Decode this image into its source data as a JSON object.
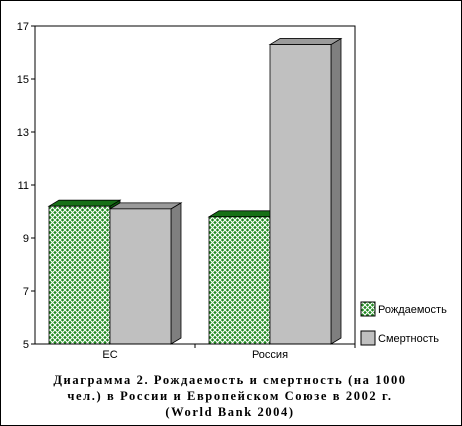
{
  "caption": {
    "line1": "Диаграмма 2. Рождаемость и смертность (на 1000",
    "line2": "чел.) в России и Европейском Союзе в 2002 г.",
    "line3": "(World Bank 2004)"
  },
  "chart_data": {
    "type": "bar",
    "categories": [
      "ЕС",
      "Россия"
    ],
    "series": [
      {
        "name": "Рождаемость",
        "values": [
          10.2,
          9.8
        ],
        "color": "#1a7a1a",
        "pattern": "crosshatch"
      },
      {
        "name": "Смертность",
        "values": [
          10.1,
          16.3
        ],
        "color": "#c0c0c0",
        "pattern": "solid"
      }
    ],
    "yticks": [
      "5",
      "7",
      "9",
      "11",
      "13",
      "15",
      "17"
    ],
    "ylim": [
      5,
      17
    ],
    "grid": false,
    "legend_position": "right",
    "three_d": true
  }
}
